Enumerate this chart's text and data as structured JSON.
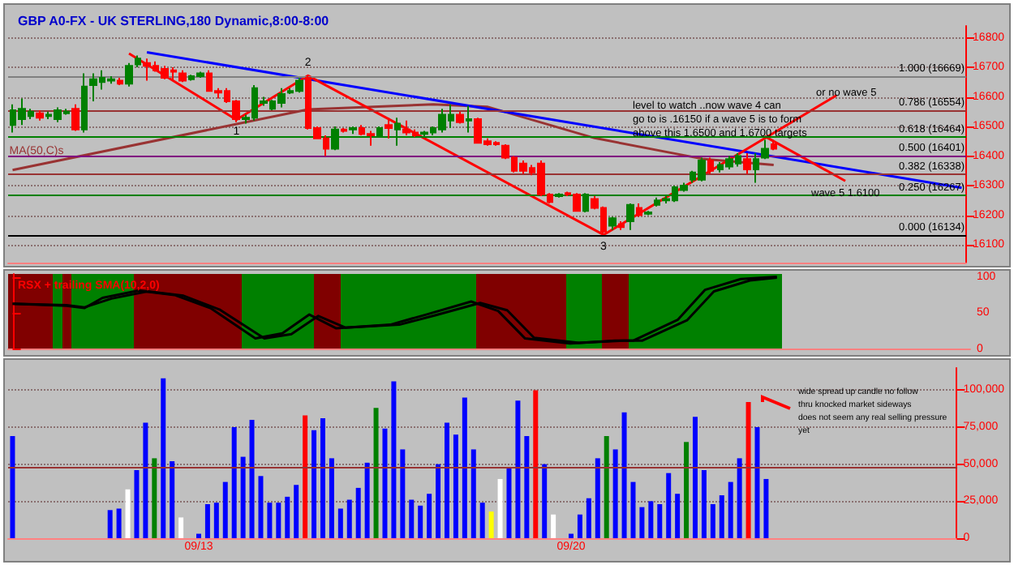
{
  "chart_data": [
    {
      "type": "candlestick",
      "title": "GBP A0-FX - UK STERLING,180 Dynamic,8:00-8:00",
      "tick_labels": "y",
      "grid": "y",
      "ylim": [
        16040,
        16840
      ],
      "yticks": [
        16100,
        16200,
        16300,
        16400,
        16500,
        16600,
        16700,
        16800
      ],
      "categories": [
        null,
        null,
        null,
        null,
        null,
        null,
        null,
        null,
        null,
        null,
        null,
        null,
        null,
        null,
        null,
        null,
        null,
        null,
        null,
        null,
        null,
        null,
        null,
        null,
        null,
        null,
        null,
        null,
        null,
        null,
        null,
        null,
        null,
        null,
        null,
        null,
        null,
        null,
        null,
        null,
        null,
        null,
        null,
        null,
        null,
        null,
        null,
        null,
        null,
        null,
        null,
        null,
        null,
        null,
        null,
        null,
        null,
        null,
        null,
        null,
        null,
        null,
        null,
        null,
        null,
        null,
        null,
        null,
        null,
        null,
        null,
        null,
        null,
        null,
        null,
        null,
        null,
        null,
        null,
        null,
        null,
        null,
        null,
        null,
        null,
        null,
        null,
        null,
        null,
        null,
        null,
        null,
        null,
        null,
        null,
        null,
        null,
        null,
        null,
        null,
        null,
        null,
        null,
        null,
        null,
        null,
        null
      ],
      "ohlc": [
        [
          16505,
          16575,
          16480,
          16555
        ],
        [
          16525,
          16595,
          16505,
          16560
        ],
        [
          16535,
          16560,
          16525,
          16550
        ],
        [
          16545,
          16555,
          16520,
          16530
        ],
        [
          16535,
          16550,
          16525,
          16540
        ],
        [
          16525,
          16565,
          16515,
          16555
        ],
        [
          16545,
          16560,
          16540,
          16550
        ],
        [
          16560,
          16575,
          16485,
          16490
        ],
        [
          16490,
          16680,
          16480,
          16635
        ],
        [
          16640,
          16680,
          16585,
          16660
        ],
        [
          16650,
          16690,
          16625,
          16665
        ],
        [
          16655,
          16670,
          16645,
          16660
        ],
        [
          16655,
          16665,
          16640,
          16645
        ],
        [
          16645,
          16715,
          16635,
          16705
        ],
        [
          16710,
          16740,
          16700,
          16730
        ],
        [
          16715,
          16730,
          16655,
          16705
        ],
        [
          16705,
          16720,
          16685,
          16690
        ],
        [
          16695,
          16705,
          16660,
          16665
        ],
        [
          16690,
          16700,
          16655,
          16685
        ],
        [
          16680,
          16690,
          16650,
          16655
        ],
        [
          16660,
          16675,
          16655,
          16670
        ],
        [
          16670,
          16685,
          16665,
          16680
        ],
        [
          16680,
          16690,
          16620,
          16620
        ],
        [
          16620,
          16630,
          16595,
          16615
        ],
        [
          16620,
          16630,
          16580,
          16585
        ],
        [
          16585,
          16590,
          16515,
          16525
        ],
        [
          16525,
          16540,
          16510,
          16530
        ],
        [
          16530,
          16640,
          16520,
          16630
        ],
        [
          16580,
          16600,
          16570,
          16585
        ],
        [
          16560,
          16590,
          16555,
          16585
        ],
        [
          16580,
          16630,
          16565,
          16610
        ],
        [
          16615,
          16630,
          16610,
          16620
        ],
        [
          16620,
          16665,
          16615,
          16655
        ],
        [
          16665,
          16672,
          16490,
          16495
        ],
        [
          16495,
          16500,
          16460,
          16460
        ],
        [
          16460,
          16470,
          16400,
          16425
        ],
        [
          16425,
          16500,
          16420,
          16490
        ],
        [
          16490,
          16495,
          16480,
          16485
        ],
        [
          16490,
          16500,
          16475,
          16495
        ],
        [
          16495,
          16505,
          16470,
          16475
        ],
        [
          16475,
          16485,
          16435,
          16470
        ],
        [
          16470,
          16500,
          16465,
          16495
        ],
        [
          16505,
          16530,
          16460,
          16495
        ],
        [
          16490,
          16530,
          16435,
          16510
        ],
        [
          16490,
          16520,
          16470,
          16480
        ],
        [
          16480,
          16490,
          16465,
          16470
        ],
        [
          16475,
          16485,
          16465,
          16480
        ],
        [
          16480,
          16500,
          16470,
          16495
        ],
        [
          16490,
          16560,
          16480,
          16540
        ],
        [
          16520,
          16575,
          16495,
          16540
        ],
        [
          16540,
          16550,
          16510,
          16515
        ],
        [
          16520,
          16570,
          16480,
          16525
        ],
        [
          16525,
          16530,
          16445,
          16445
        ],
        [
          16450,
          16460,
          16435,
          16440
        ],
        [
          16445,
          16450,
          16435,
          16440
        ],
        [
          16435,
          16440,
          16390,
          16395
        ],
        [
          16395,
          16400,
          16345,
          16350
        ],
        [
          16375,
          16385,
          16340,
          16350
        ],
        [
          16360,
          16370,
          16335,
          16345
        ],
        [
          16375,
          16385,
          16265,
          16270
        ],
        [
          16270,
          16275,
          16240,
          16245
        ],
        [
          16265,
          16275,
          16260,
          16270
        ],
        [
          16275,
          16280,
          16265,
          16270
        ],
        [
          16270,
          16275,
          16215,
          16215
        ],
        [
          16215,
          16275,
          16210,
          16270
        ],
        [
          16255,
          16265,
          16220,
          16225
        ],
        [
          16225,
          16230,
          16134,
          16145
        ],
        [
          16165,
          16195,
          16150,
          16190
        ],
        [
          16170,
          16180,
          16150,
          16160
        ],
        [
          16180,
          16240,
          16150,
          16235
        ],
        [
          16225,
          16240,
          16195,
          16200
        ],
        [
          16205,
          16215,
          16200,
          16210
        ],
        [
          16235,
          16260,
          16230,
          16250
        ],
        [
          16250,
          16265,
          16240,
          16255
        ],
        [
          16250,
          16300,
          16245,
          16295
        ],
        [
          16285,
          16310,
          16280,
          16300
        ],
        [
          16320,
          16350,
          16310,
          16345
        ],
        [
          16320,
          16395,
          16315,
          16385
        ],
        [
          16385,
          16395,
          16340,
          16350
        ],
        [
          16355,
          16380,
          16345,
          16370
        ],
        [
          16365,
          16400,
          16355,
          16390
        ],
        [
          16375,
          16410,
          16365,
          16400
        ],
        [
          16390,
          16410,
          16340,
          16355
        ],
        [
          16355,
          16410,
          16310,
          16390
        ],
        [
          16395,
          16455,
          16390,
          16425
        ],
        [
          16440,
          16455,
          16420,
          16425
        ],
        null,
        null,
        null,
        null,
        null,
        null,
        null,
        null,
        null,
        null,
        null,
        null,
        null,
        null,
        null,
        null,
        null,
        null,
        null,
        null,
        null
      ],
      "colors": [
        "#008000",
        "#008000",
        "#008000",
        "#ff0000",
        "#008000",
        "#008000",
        "#008000",
        "#ff0000",
        "#008000",
        "#008000",
        "#008000",
        "#008000",
        "#ff0000",
        "#008000",
        "#008000",
        "#ff0000",
        "#ff0000",
        "#ff0000",
        "#ff0000",
        "#ff0000",
        "#008000",
        "#008000",
        "#ff0000",
        "#ff0000",
        "#ff0000",
        "#ff0000",
        "#008000",
        "#008000",
        "#008000",
        "#008000",
        "#008000",
        "#008000",
        "#008000",
        "#ff0000",
        "#ff0000",
        "#ff0000",
        "#008000",
        "#ff0000",
        "#008000",
        "#ff0000",
        "#ff0000",
        "#008000",
        "#ff0000",
        "#008000",
        "#ff0000",
        "#ff0000",
        "#008000",
        "#008000",
        "#008000",
        "#008000",
        "#ff0000",
        "#008000",
        "#ff0000",
        "#ff0000",
        "#ff0000",
        "#ff0000",
        "#ff0000",
        "#ff0000",
        "#ff0000",
        "#ff0000",
        "#ff0000",
        "#008000",
        "#ff0000",
        "#ff0000",
        "#008000",
        "#ff0000",
        "#ff0000",
        "#008000",
        "#ff0000",
        "#008000",
        "#ff0000",
        "#008000",
        "#008000",
        "#008000",
        "#008000",
        "#008000",
        "#008000",
        "#008000",
        "#ff0000",
        "#008000",
        "#008000",
        "#008000",
        "#ff0000",
        "#008000",
        "#008000",
        "#ff0000",
        null,
        null,
        null,
        null,
        null,
        null,
        null,
        null,
        null,
        null,
        null,
        null,
        null,
        null,
        null,
        null,
        null,
        null,
        null,
        null,
        null
      ],
      "series": [
        {
          "name": "MA(50,C)s",
          "type": "line",
          "color": "#993333",
          "values": [
            16353,
            null,
            null,
            null,
            null,
            null,
            null,
            null,
            null,
            null,
            null,
            null,
            null,
            null,
            null,
            null,
            null,
            null,
            null,
            null,
            null,
            null,
            null,
            null,
            null,
            null,
            null,
            null,
            null,
            null,
            null,
            null,
            null,
            16558,
            null,
            null,
            null,
            null,
            null,
            null,
            null,
            null,
            null,
            null,
            null,
            null,
            null,
            16575,
            null,
            null,
            null,
            null,
            null,
            16567,
            null,
            null,
            null,
            null,
            null,
            null,
            null,
            null,
            null,
            null,
            null,
            16461,
            null,
            null,
            null,
            null,
            null,
            null,
            null,
            null,
            null,
            null,
            null,
            16391,
            null,
            null,
            null,
            null,
            null,
            null,
            null,
            16370,
            null,
            null,
            null,
            null,
            null,
            null,
            null,
            null,
            null,
            null,
            null,
            null,
            null,
            null,
            null,
            null,
            null,
            null,
            null,
            null,
            null
          ]
        },
        {
          "type": "line",
          "color": "#0000ff",
          "values": [
            null,
            null,
            null,
            null,
            null,
            null,
            null,
            null,
            null,
            null,
            null,
            null,
            null,
            null,
            null,
            16751,
            null,
            null,
            null,
            null,
            null,
            null,
            null,
            null,
            null,
            null,
            null,
            null,
            null,
            null,
            null,
            null,
            null,
            null,
            null,
            null,
            null,
            null,
            null,
            null,
            null,
            null,
            null,
            null,
            null,
            null,
            null,
            null,
            null,
            null,
            null,
            null,
            null,
            null,
            null,
            null,
            null,
            null,
            null,
            null,
            null,
            null,
            null,
            null,
            null,
            null,
            null,
            null,
            null,
            null,
            null,
            null,
            null,
            null,
            null,
            null,
            null,
            null,
            null,
            null,
            null,
            null,
            null,
            null,
            null,
            null,
            null,
            null,
            null,
            null,
            null,
            null,
            null,
            null,
            null,
            null,
            null,
            null,
            null,
            null,
            null,
            null,
            null,
            null,
            null,
            null,
            16293
          ]
        },
        {
          "type": "line",
          "color": "#ff0000",
          "values": [
            null,
            null,
            null,
            null,
            null,
            null,
            null,
            null,
            null,
            null,
            null,
            null,
            null,
            16747,
            null,
            null,
            null,
            null,
            null,
            null,
            null,
            null,
            null,
            null,
            null,
            16523,
            null,
            null,
            null,
            null,
            null,
            null,
            null,
            16672,
            null,
            null,
            null,
            null,
            null,
            null,
            null,
            null,
            null,
            null,
            null,
            null,
            null,
            null,
            null,
            null,
            null,
            null,
            null,
            null,
            null,
            null,
            null,
            null,
            null,
            null,
            null,
            null,
            null,
            null,
            null,
            null,
            16134,
            null,
            null,
            null,
            null,
            null,
            null,
            null,
            null,
            null,
            null,
            null,
            null,
            null,
            null,
            null,
            null,
            null,
            null,
            null,
            null,
            null,
            null,
            null,
            null,
            null,
            16605,
            null,
            null,
            null,
            null,
            null,
            null,
            null,
            null,
            null,
            null,
            null,
            null,
            null,
            null
          ]
        },
        {
          "type": "line",
          "color": "#ff0000",
          "values": [
            null,
            null,
            null,
            null,
            null,
            null,
            null,
            null,
            null,
            null,
            null,
            null,
            null,
            null,
            null,
            null,
            null,
            null,
            null,
            null,
            null,
            null,
            null,
            null,
            null,
            null,
            null,
            null,
            null,
            null,
            null,
            null,
            null,
            null,
            null,
            null,
            null,
            null,
            null,
            null,
            null,
            null,
            null,
            null,
            null,
            null,
            null,
            null,
            null,
            null,
            null,
            null,
            null,
            null,
            null,
            null,
            null,
            null,
            null,
            null,
            null,
            null,
            null,
            null,
            null,
            null,
            null,
            null,
            null,
            null,
            null,
            null,
            null,
            null,
            null,
            null,
            null,
            null,
            null,
            null,
            null,
            null,
            null,
            null,
            16467,
            null,
            null,
            null,
            null,
            null,
            null,
            null,
            null,
            16316,
            null,
            null,
            null,
            null,
            null,
            null,
            null,
            null,
            null,
            null,
            null,
            null,
            null
          ]
        }
      ],
      "ref_lines": [
        {
          "axis": "y",
          "value": 16669,
          "label": "1.000 (16669)",
          "color": "#808080"
        },
        {
          "axis": "y",
          "value": 16554,
          "label": "0.786 (16554)",
          "color": "#993333"
        },
        {
          "axis": "y",
          "value": 16464,
          "label": "0.618 (16464)",
          "color": "#008000"
        },
        {
          "axis": "y",
          "value": 16401,
          "label": "0.500 (16401)",
          "color": "#800080"
        },
        {
          "axis": "y",
          "value": 16338,
          "label": "0.382 (16338)",
          "color": "#993333"
        },
        {
          "axis": "y",
          "value": 16267,
          "label": "0.250 (16267)",
          "color": "#008000"
        },
        {
          "axis": "y",
          "value": 16134,
          "label": "0.000 (16134)",
          "color": "#000000"
        }
      ],
      "annotations": [
        {
          "text": "1",
          "y": 16523
        },
        {
          "text": "2",
          "y": 16672
        },
        {
          "text": "3",
          "y": 16134
        },
        "level to watch ..now wave 4 can\ngo to is .16150 if a wave 5 is to form\nabove this 1.6500 and 1.6700 targets",
        "or no wave 5",
        "wave 5 1.6100"
      ]
    },
    {
      "type": "line",
      "title": "RSX + trailing SMA(10,2,0)",
      "tick_labels": "y",
      "ylim": [
        0,
        104
      ],
      "yticks": [
        0,
        50,
        100
      ],
      "categories": [
        null,
        null,
        null,
        null,
        null,
        null,
        null,
        null,
        null,
        null,
        null,
        null,
        null,
        null,
        null,
        null,
        null,
        null,
        null,
        null,
        null,
        null,
        null,
        null,
        null,
        null,
        null,
        null,
        null,
        null,
        null,
        null,
        null,
        null,
        null,
        null,
        null,
        null,
        null,
        null,
        null,
        null,
        null,
        null,
        null,
        null,
        null,
        null,
        null,
        null,
        null,
        null,
        null,
        null,
        null,
        null,
        null,
        null,
        null,
        null,
        null,
        null,
        null,
        null,
        null,
        null,
        null,
        null,
        null,
        null,
        null,
        null,
        null,
        null,
        null,
        null,
        null,
        null,
        null,
        null,
        null,
        null,
        null,
        null,
        null,
        null,
        null,
        null,
        null,
        null,
        null,
        null,
        null,
        null,
        null,
        null,
        null,
        null,
        null,
        null,
        null,
        null,
        null,
        null,
        null,
        null,
        null
      ],
      "series": [
        {
          "color": "#000000",
          "values": [
            63,
            null,
            null,
            null,
            null,
            null,
            60,
            null,
            57,
            null,
            71,
            null,
            null,
            null,
            81,
            null,
            null,
            null,
            75,
            null,
            null,
            null,
            57,
            null,
            null,
            null,
            null,
            15,
            null,
            null,
            22,
            null,
            null,
            48,
            null,
            null,
            29,
            null,
            null,
            null,
            null,
            null,
            34,
            null,
            null,
            null,
            48,
            null,
            null,
            null,
            null,
            66,
            null,
            null,
            53,
            null,
            null,
            15,
            null,
            null,
            null,
            null,
            8,
            null,
            null,
            null,
            null,
            12,
            null,
            12,
            null,
            null,
            null,
            null,
            41,
            null,
            null,
            82,
            null,
            null,
            null,
            97,
            null,
            null,
            null,
            100,
            null,
            null,
            null,
            null,
            null,
            null,
            null,
            null,
            null,
            null,
            null,
            null,
            null,
            null,
            null,
            null,
            null,
            null,
            null,
            null,
            null
          ]
        },
        {
          "color": "#000000",
          "values": [
            63,
            null,
            null,
            null,
            null,
            null,
            61,
            null,
            58,
            null,
            null,
            70,
            null,
            null,
            null,
            80,
            null,
            null,
            null,
            74,
            null,
            null,
            null,
            55,
            null,
            null,
            null,
            null,
            15,
            null,
            null,
            21,
            null,
            null,
            46,
            null,
            null,
            30,
            null,
            null,
            null,
            null,
            null,
            34,
            null,
            null,
            null,
            47,
            null,
            null,
            null,
            null,
            64,
            null,
            null,
            54,
            null,
            null,
            16,
            null,
            null,
            null,
            null,
            9,
            null,
            null,
            null,
            null,
            12,
            null,
            12,
            null,
            null,
            null,
            null,
            40,
            null,
            null,
            80,
            null,
            null,
            null,
            95,
            null,
            null,
            99,
            null,
            null,
            null,
            null,
            null,
            null,
            null,
            null,
            null,
            null,
            null,
            null,
            null,
            null,
            null,
            null,
            null,
            null,
            null,
            null,
            null
          ]
        }
      ]
    },
    {
      "type": "bar",
      "grid": "y",
      "ylim": [
        0,
        115000
      ],
      "yticks": [
        0,
        {
          "value": 25000,
          "label": "25,000"
        },
        {
          "value": 50000,
          "label": "50,000"
        },
        {
          "value": 75000,
          "label": "75,000"
        },
        {
          "value": 100000,
          "label": "100,000"
        }
      ],
      "categories": [
        null,
        null,
        null,
        null,
        null,
        null,
        null,
        null,
        null,
        null,
        null,
        null,
        null,
        null,
        null,
        null,
        null,
        null,
        null,
        null,
        null,
        "09/13",
        null,
        null,
        null,
        null,
        null,
        null,
        null,
        null,
        null,
        null,
        null,
        null,
        null,
        null,
        null,
        null,
        null,
        null,
        null,
        null,
        null,
        null,
        null,
        null,
        null,
        null,
        null,
        null,
        null,
        null,
        null,
        null,
        null,
        null,
        null,
        null,
        null,
        null,
        null,
        null,
        null,
        "09/20",
        null,
        null,
        null,
        null,
        null,
        null,
        null,
        null,
        null,
        null,
        null,
        null,
        null,
        null,
        null,
        null,
        null,
        null,
        null,
        null,
        null,
        null,
        null,
        null,
        null,
        null,
        null,
        null,
        null,
        null,
        null,
        null,
        null,
        null,
        null,
        null,
        null,
        null,
        null,
        null,
        null,
        null,
        null
      ],
      "values": [
        69000,
        null,
        null,
        null,
        null,
        null,
        null,
        null,
        null,
        null,
        null,
        19000,
        20000,
        33000,
        46000,
        78000,
        54000,
        108000,
        52000,
        14000,
        null,
        3000,
        23000,
        24000,
        38000,
        75000,
        55000,
        80000,
        42000,
        24000,
        24000,
        28000,
        36000,
        83000,
        73000,
        81000,
        54000,
        20000,
        26000,
        34000,
        51000,
        88000,
        74000,
        106000,
        60000,
        26000,
        22000,
        30000,
        50000,
        78000,
        70000,
        95000,
        60000,
        24000,
        18000,
        40000,
        48000,
        93000,
        69000,
        100000,
        50000,
        16000,
        null,
        3000,
        16000,
        27000,
        54000,
        69000,
        60000,
        85000,
        38000,
        21000,
        25000,
        23000,
        44000,
        30000,
        65000,
        82000,
        46000,
        23000,
        29000,
        38000,
        54000,
        92000,
        75000,
        40000,
        null,
        null,
        null,
        null,
        null,
        null,
        null,
        null,
        null,
        null,
        null,
        null,
        null,
        null,
        null,
        null,
        null,
        null,
        null,
        null,
        null
      ],
      "colors": [
        "#0000ff",
        null,
        null,
        null,
        null,
        null,
        null,
        null,
        null,
        null,
        null,
        "#0000ff",
        "#0000ff",
        "#ffffff",
        "#0000ff",
        "#0000ff",
        "#008000",
        "#0000ff",
        "#0000ff",
        "#ffffff",
        null,
        "#0000ff",
        "#0000ff",
        "#0000ff",
        "#0000ff",
        "#0000ff",
        "#0000ff",
        "#0000ff",
        "#0000ff",
        "#0000ff",
        "#0000ff",
        "#0000ff",
        "#0000ff",
        "#ff0000",
        "#0000ff",
        "#0000ff",
        "#0000ff",
        "#0000ff",
        "#0000ff",
        "#0000ff",
        "#0000ff",
        "#008000",
        "#0000ff",
        "#0000ff",
        "#0000ff",
        "#0000ff",
        "#0000ff",
        "#0000ff",
        "#0000ff",
        "#0000ff",
        "#0000ff",
        "#0000ff",
        "#0000ff",
        "#0000ff",
        "#ffff00",
        "#ffffff",
        "#0000ff",
        "#0000ff",
        "#0000ff",
        "#ff0000",
        "#0000ff",
        "#ffffff",
        null,
        "#0000ff",
        "#0000ff",
        "#0000ff",
        "#0000ff",
        "#008000",
        "#0000ff",
        "#0000ff",
        "#0000ff",
        "#0000ff",
        "#0000ff",
        "#0000ff",
        "#0000ff",
        "#0000ff",
        "#008000",
        "#0000ff",
        "#0000ff",
        "#0000ff",
        "#0000ff",
        "#0000ff",
        "#0000ff",
        "#ff0000",
        "#0000ff",
        "#0000ff",
        null,
        null,
        null,
        null,
        null,
        null,
        null,
        null,
        null,
        null,
        null,
        null,
        null,
        null,
        null,
        null,
        null,
        null,
        null,
        null,
        null
      ],
      "ref_lines": [
        {
          "axis": "y",
          "value": 47700,
          "color": "#993333"
        }
      ],
      "annotations": [
        "wide spread up candle no follow\nthru knocked market sideways\ndoes not seem any real selling pressure\nyet"
      ]
    }
  ]
}
